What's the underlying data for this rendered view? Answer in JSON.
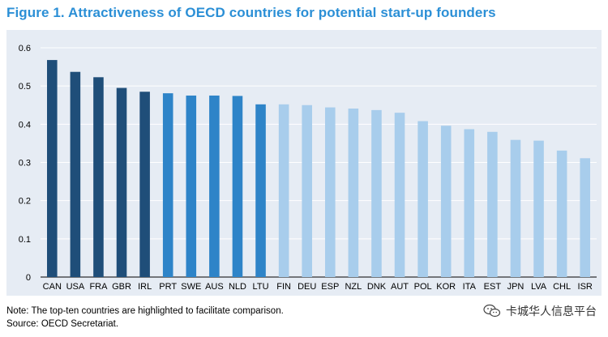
{
  "title": "Figure 1. Attractiveness of OECD countries for potential start-up founders",
  "note": "Note: The top-ten countries are highlighted to facilitate comparison.",
  "source": "Source: OECD Secretariat.",
  "watermark": {
    "text": "卡城华人信息平台",
    "icon": "wechat-icon"
  },
  "colors": {
    "top_dark": "#1f4e79",
    "top_mid": "#2e84c8",
    "rest": "#a8cdec",
    "background": "#e6ecf4",
    "grid": "#ffffff",
    "title": "#2b8fd6"
  },
  "chart_data": {
    "type": "bar",
    "title": "Figure 1. Attractiveness of OECD countries for potential start-up founders",
    "xlabel": "",
    "ylabel": "",
    "ylim": [
      0,
      0.6
    ],
    "yticks": [
      0,
      0.1,
      0.2,
      0.3,
      0.4,
      0.5,
      0.6
    ],
    "ytick_labels": [
      "0",
      "0.1",
      "0.2",
      "0.3",
      "0.4",
      "0.5",
      "0.6"
    ],
    "grid": true,
    "categories": [
      "CAN",
      "USA",
      "FRA",
      "GBR",
      "IRL",
      "PRT",
      "SWE",
      "AUS",
      "NLD",
      "LTU",
      "FIN",
      "DEU",
      "ESP",
      "NZL",
      "DNK",
      "AUT",
      "POL",
      "KOR",
      "ITA",
      "EST",
      "JPN",
      "LVA",
      "CHL",
      "ISR"
    ],
    "values": [
      0.568,
      0.537,
      0.523,
      0.495,
      0.485,
      0.481,
      0.475,
      0.475,
      0.474,
      0.452,
      0.452,
      0.45,
      0.444,
      0.441,
      0.437,
      0.43,
      0.408,
      0.396,
      0.387,
      0.38,
      0.359,
      0.357,
      0.331,
      0.311
    ],
    "highlight_group": [
      "dark",
      "dark",
      "dark",
      "dark",
      "dark",
      "mid",
      "mid",
      "mid",
      "mid",
      "mid",
      "light",
      "light",
      "light",
      "light",
      "light",
      "light",
      "light",
      "light",
      "light",
      "light",
      "light",
      "light",
      "light",
      "light"
    ]
  }
}
